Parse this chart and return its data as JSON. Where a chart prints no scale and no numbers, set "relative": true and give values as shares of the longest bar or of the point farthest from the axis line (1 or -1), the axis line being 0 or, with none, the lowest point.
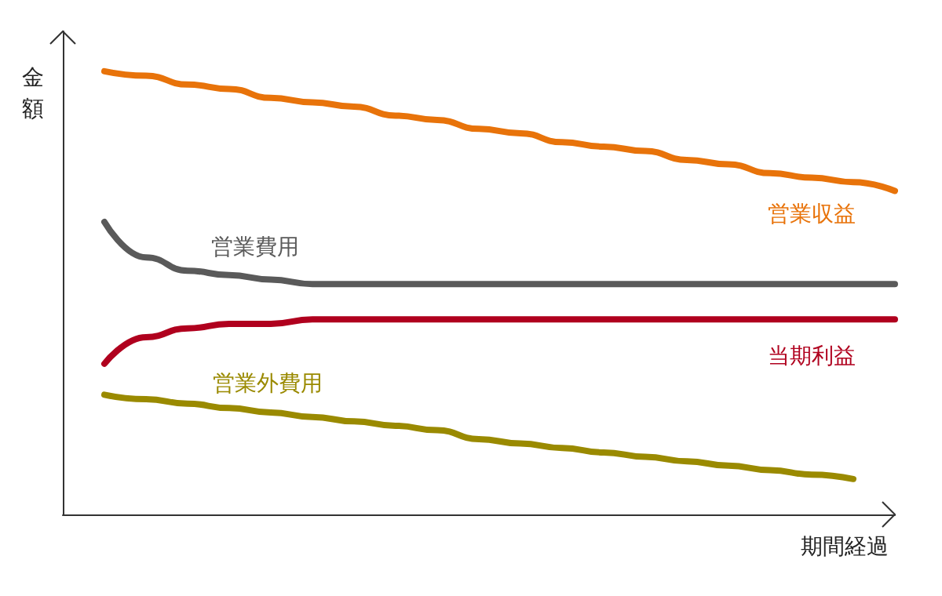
{
  "chart_data": {
    "type": "line",
    "relative": true,
    "xlabel": "期間経過",
    "ylabel": "金額",
    "legend": false,
    "grid": false,
    "marker": "none",
    "line_style": "solid",
    "categories": [
      null,
      null,
      null,
      null,
      null,
      null,
      null,
      null,
      null,
      null,
      null,
      null,
      null,
      null,
      null,
      null,
      null,
      null,
      null,
      null,
      null
    ],
    "series": [
      {
        "name": "営業収益",
        "color": "#e8730a",
        "values": [
          null,
          1,
          0.99,
          0.97,
          0.96,
          0.94,
          0.93,
          0.92,
          0.9,
          0.89,
          0.87,
          0.86,
          0.84,
          0.83,
          0.82,
          0.8,
          0.79,
          0.77,
          0.76,
          0.75,
          0.73
        ]
      },
      {
        "name": "営業費用",
        "color": "#5a5a5a",
        "values": [
          null,
          0.66,
          0.58,
          0.55,
          0.54,
          0.53,
          0.52,
          0.52,
          0.52,
          0.52,
          0.52,
          0.52,
          0.52,
          0.52,
          0.52,
          0.52,
          0.52,
          0.52,
          0.52,
          0.52,
          0.52
        ]
      },
      {
        "name": "当期利益",
        "color": "#b0001e",
        "values": [
          null,
          0.34,
          0.4,
          0.42,
          0.43,
          0.43,
          0.44,
          0.44,
          0.44,
          0.44,
          0.44,
          0.44,
          0.44,
          0.44,
          0.44,
          0.44,
          0.44,
          0.44,
          0.44,
          0.44,
          0.44
        ]
      },
      {
        "name": "営業外費用",
        "color": "#9a8a00",
        "values": [
          null,
          0.27,
          0.26,
          0.25,
          0.24,
          0.23,
          0.22,
          0.21,
          0.2,
          0.19,
          0.17,
          0.16,
          0.15,
          0.14,
          0.13,
          0.12,
          0.11,
          0.1,
          0.09,
          0.08,
          null
        ]
      }
    ]
  }
}
